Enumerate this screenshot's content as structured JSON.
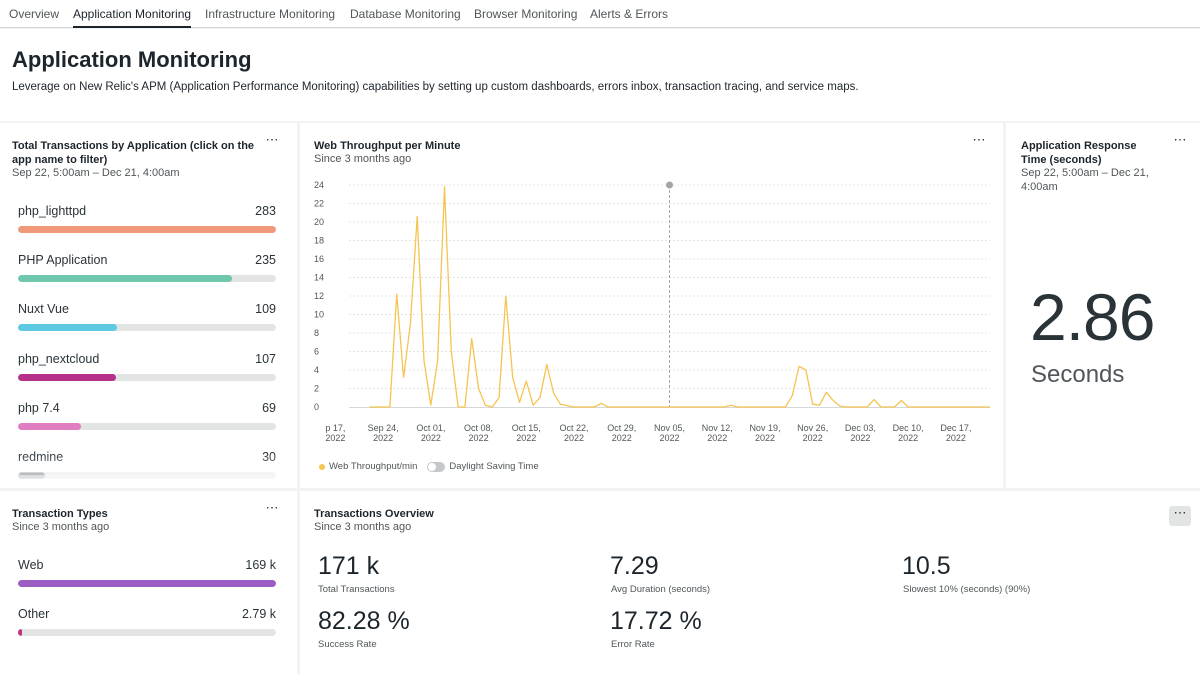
{
  "tabs": [
    "Overview",
    "Application Monitoring",
    "Infrastructure Monitoring",
    "Database Monitoring",
    "Browser Monitoring",
    "Alerts & Errors"
  ],
  "active_tab": "Application Monitoring",
  "header": {
    "title": "Application Monitoring",
    "description": "Leverage on New Relic's APM (Application Performance Monitoring) capabilities by setting up custom dashboards, errors inbox, transaction tracing, and service maps."
  },
  "total_transactions": {
    "title_line1": "Total Transactions by Application (click on the",
    "title_line2": "app name to filter)",
    "subtitle": "Sep 22, 5:00am – Dec 21, 4:00am",
    "menu_icon": "more-horizontal-icon",
    "max": 283,
    "items": [
      {
        "label": "php_lighttpd",
        "value": "283",
        "amount": 283,
        "color": "#f0997a"
      },
      {
        "label": "PHP Application",
        "value": "235",
        "amount": 235,
        "color": "#6fc7ad"
      },
      {
        "label": "Nuxt Vue",
        "value": "109",
        "amount": 109,
        "color": "#5dc9e3"
      },
      {
        "label": "php_nextcloud",
        "value": "107",
        "amount": 107,
        "color": "#b53088"
      },
      {
        "label": "php 7.4",
        "value": "69",
        "amount": 69,
        "color": "#e07ec1"
      },
      {
        "label": "redmine",
        "value": "30",
        "amount": 30,
        "color": "#9aa0a3"
      }
    ]
  },
  "web_throughput": {
    "title": "Web Throughput per Minute",
    "subtitle": "Since 3 months ago",
    "menu_icon": "more-horizontal-icon",
    "legend_series": "Web Throughput/min",
    "legend_toggle": "Daylight Saving Time"
  },
  "chart_data": {
    "type": "line",
    "title": "Web Throughput per Minute",
    "xlabel": "",
    "ylabel": "",
    "ylim": [
      0,
      24
    ],
    "yticks": [
      0,
      2,
      4,
      6,
      8,
      10,
      12,
      14,
      16,
      18,
      20,
      22,
      24
    ],
    "xlim": [
      "2022-09-19",
      "2022-12-22"
    ],
    "xtick_dates": [
      "2022-09-17",
      "2022-09-24",
      "2022-10-01",
      "2022-10-08",
      "2022-10-15",
      "2022-10-22",
      "2022-10-29",
      "2022-11-05",
      "2022-11-12",
      "2022-11-19",
      "2022-11-26",
      "2022-12-03",
      "2022-12-10",
      "2022-12-17"
    ],
    "xtick_labels": [
      [
        "p 17,",
        "2022"
      ],
      [
        "Sep 24,",
        "2022"
      ],
      [
        "Oct 01,",
        "2022"
      ],
      [
        "Oct 08,",
        "2022"
      ],
      [
        "Oct 15,",
        "2022"
      ],
      [
        "Oct 22,",
        "2022"
      ],
      [
        "Oct 29,",
        "2022"
      ],
      [
        "Nov 05,",
        "2022"
      ],
      [
        "Nov 12,",
        "2022"
      ],
      [
        "Nov 19,",
        "2022"
      ],
      [
        "Nov 26,",
        "2022"
      ],
      [
        "Dec 03,",
        "2022"
      ],
      [
        "Dec 10,",
        "2022"
      ],
      [
        "Dec 17,",
        "2022"
      ]
    ],
    "cursor_date": "2022-11-05",
    "grid": true,
    "legend": "bottom-left",
    "series": [
      {
        "name": "Web Throughput/min",
        "color": "#f5c451",
        "points": [
          [
            "2022-09-22",
            0
          ],
          [
            "2022-09-25",
            0
          ],
          [
            "2022-09-26",
            12.2
          ],
          [
            "2022-09-27",
            3.2
          ],
          [
            "2022-09-28",
            9
          ],
          [
            "2022-09-29",
            20.6
          ],
          [
            "2022-09-30",
            5
          ],
          [
            "2022-10-01",
            0.2
          ],
          [
            "2022-10-02",
            5
          ],
          [
            "2022-10-03",
            23.8
          ],
          [
            "2022-10-04",
            6
          ],
          [
            "2022-10-05",
            0
          ],
          [
            "2022-10-06",
            0
          ],
          [
            "2022-10-07",
            7.4
          ],
          [
            "2022-10-08",
            2
          ],
          [
            "2022-10-09",
            0.2
          ],
          [
            "2022-10-10",
            0
          ],
          [
            "2022-10-11",
            1
          ],
          [
            "2022-10-12",
            12
          ],
          [
            "2022-10-13",
            3.2
          ],
          [
            "2022-10-14",
            0.5
          ],
          [
            "2022-10-15",
            2.8
          ],
          [
            "2022-10-16",
            0.2
          ],
          [
            "2022-10-17",
            1
          ],
          [
            "2022-10-18",
            4.6
          ],
          [
            "2022-10-19",
            1.5
          ],
          [
            "2022-10-20",
            0.3
          ],
          [
            "2022-10-22",
            0
          ],
          [
            "2022-10-25",
            0
          ],
          [
            "2022-10-26",
            0.4
          ],
          [
            "2022-10-27",
            0
          ],
          [
            "2022-11-05",
            0
          ],
          [
            "2022-11-13",
            0
          ],
          [
            "2022-11-14",
            0.2
          ],
          [
            "2022-11-15",
            0
          ],
          [
            "2022-11-22",
            0
          ],
          [
            "2022-11-23",
            1.2
          ],
          [
            "2022-11-24",
            4.4
          ],
          [
            "2022-11-25",
            4
          ],
          [
            "2022-11-26",
            0.3
          ],
          [
            "2022-11-27",
            0.2
          ],
          [
            "2022-11-28",
            1.6
          ],
          [
            "2022-11-29",
            0.7
          ],
          [
            "2022-11-30",
            0.1
          ],
          [
            "2022-12-01",
            0
          ],
          [
            "2022-12-04",
            0
          ],
          [
            "2022-12-05",
            0.8
          ],
          [
            "2022-12-06",
            0
          ],
          [
            "2022-12-08",
            0
          ],
          [
            "2022-12-09",
            0.7
          ],
          [
            "2022-12-10",
            0
          ],
          [
            "2022-12-22",
            0
          ]
        ]
      }
    ]
  },
  "response_time": {
    "title_line1": "Application Response",
    "title_line2": "Time (seconds)",
    "subtitle_line1": "Sep 22, 5:00am – Dec 21,",
    "subtitle_line2": "4:00am",
    "menu_icon": "more-horizontal-icon",
    "value": "2.86",
    "unit": "Seconds"
  },
  "transaction_types": {
    "title": "Transaction Types",
    "subtitle": "Since 3 months ago",
    "menu_icon": "more-horizontal-icon",
    "items": [
      {
        "label": "Web",
        "value": "169 k",
        "fraction": 1.0,
        "color": "#9b5cc4"
      },
      {
        "label": "Other",
        "value": "2.79 k",
        "fraction": 0.0165,
        "color": "#c0317f"
      }
    ]
  },
  "transactions_overview": {
    "title": "Transactions Overview",
    "subtitle": "Since 3 months ago",
    "menu_icon": "more-horizontal-icon",
    "metrics": [
      {
        "value": "171 k",
        "label": "Total Transactions"
      },
      {
        "value": "7.29",
        "label": "Avg Duration (seconds)"
      },
      {
        "value": "10.5",
        "label": "Slowest 10% (seconds) (90%)"
      },
      {
        "value": "82.28 %",
        "label": "Success Rate"
      },
      {
        "value": "17.72 %",
        "label": "Error Rate"
      }
    ]
  }
}
